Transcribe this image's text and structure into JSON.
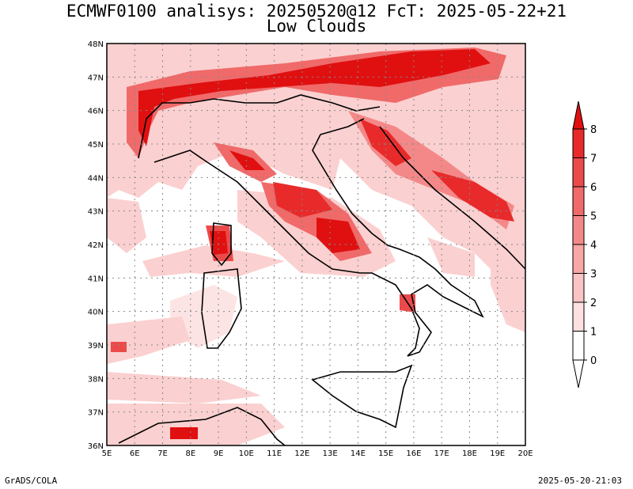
{
  "title_line1": "ECMWF0100 analisys: 20250520@12 FcT: 2025-05-22+21",
  "title_line2": "Low Clouds",
  "footer_left": "GrADS/COLA",
  "footer_right": "2025-05-20-21:03",
  "chart_data": {
    "type": "heatmap",
    "variable": "Low Clouds",
    "lon_range": [
      5,
      20
    ],
    "lat_range": [
      36,
      48
    ],
    "x_ticks": [
      "5E",
      "6E",
      "7E",
      "8E",
      "9E",
      "10E",
      "11E",
      "12E",
      "13E",
      "14E",
      "15E",
      "16E",
      "17E",
      "18E",
      "19E",
      "20E"
    ],
    "y_ticks": [
      "36N",
      "37N",
      "38N",
      "39N",
      "40N",
      "41N",
      "42N",
      "43N",
      "44N",
      "45N",
      "46N",
      "47N",
      "48N"
    ],
    "grid": true,
    "colorbar": {
      "position": "right",
      "levels": [
        0,
        1,
        2,
        3,
        4,
        5,
        6,
        7,
        8
      ],
      "labels": [
        "0",
        "1",
        "2",
        "3",
        "4",
        "5",
        "6",
        "7",
        "8"
      ],
      "colors": [
        "#ffffff",
        "#fde0e0",
        "#fbc4c4",
        "#f8a6a6",
        "#f48888",
        "#f06a6a",
        "#ec4a4a",
        "#e82a2a",
        "#e01010"
      ]
    }
  }
}
